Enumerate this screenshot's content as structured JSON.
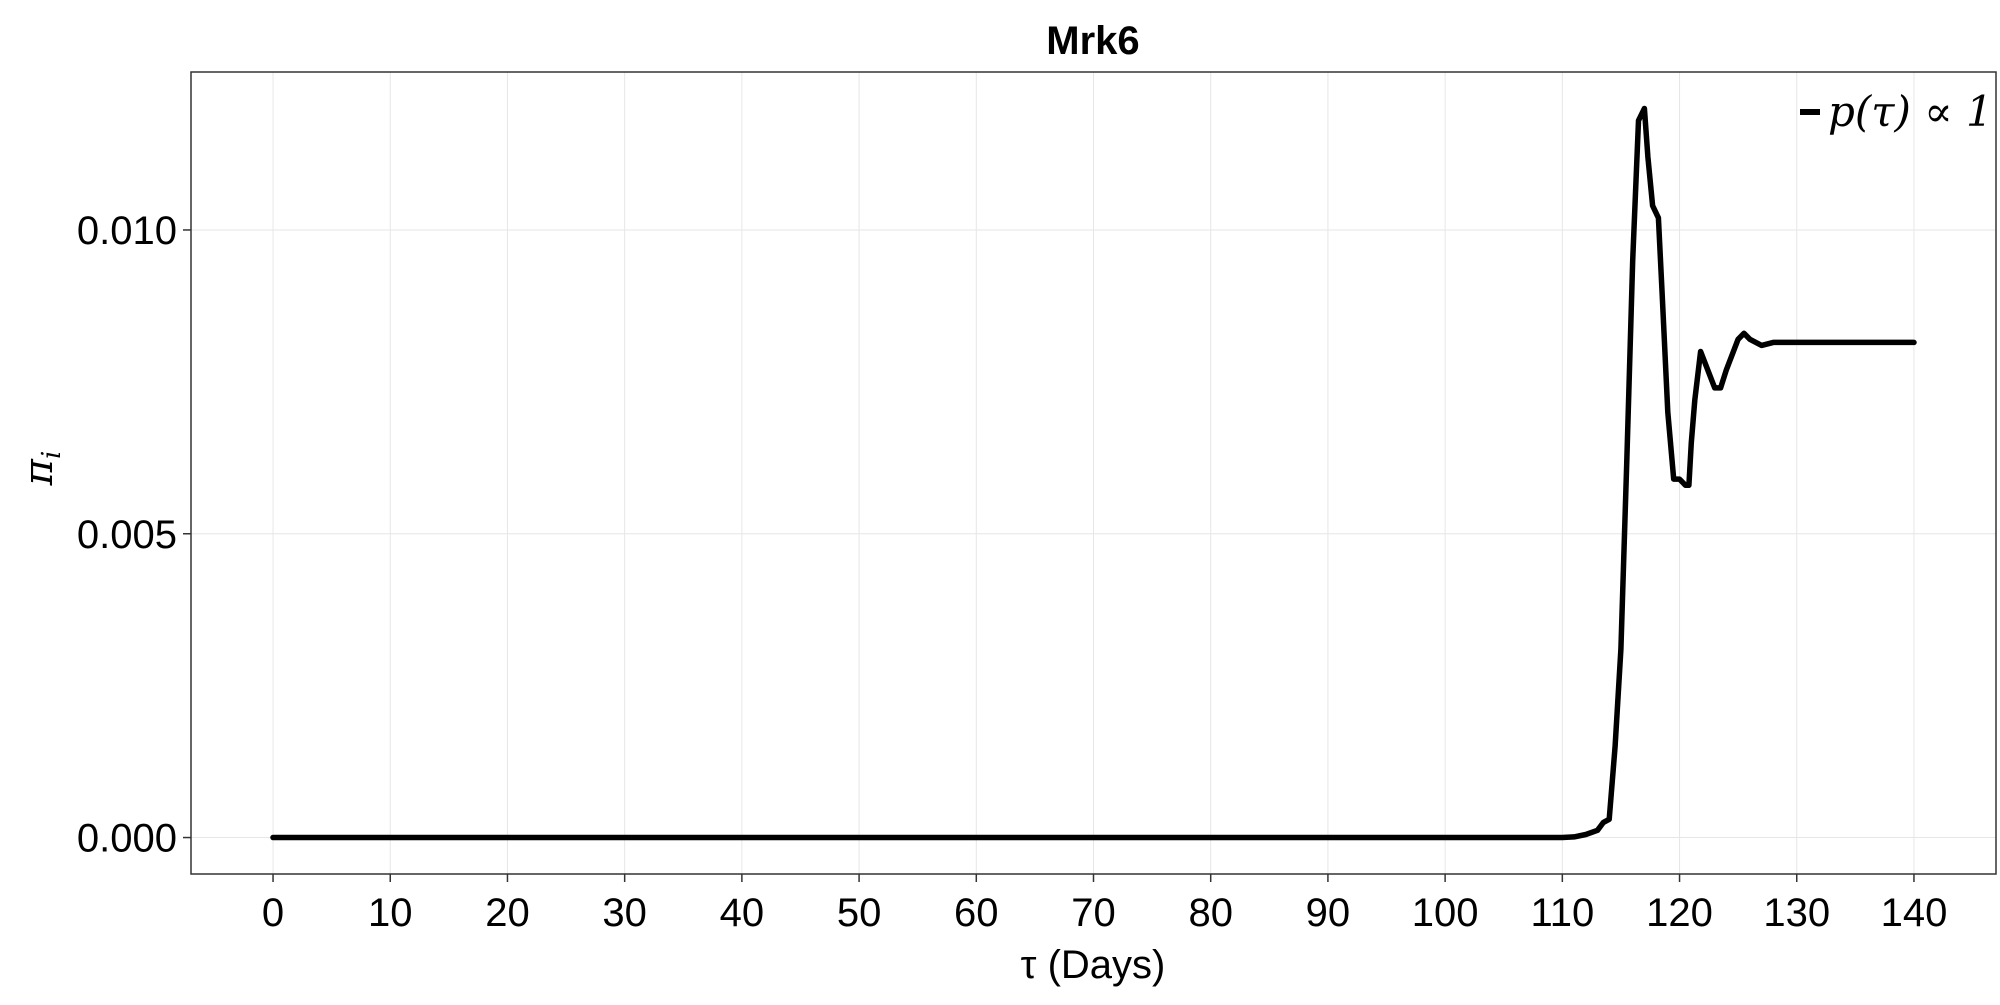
{
  "chart_data": {
    "type": "line",
    "title": "Mrk6",
    "xlabel": "τ (Days)",
    "ylabel": "π_i",
    "xlim": [
      -7,
      147
    ],
    "ylim": [
      -0.0006,
      0.0126
    ],
    "xticks": [
      0,
      10,
      20,
      30,
      40,
      50,
      60,
      70,
      80,
      90,
      100,
      110,
      120,
      130,
      140
    ],
    "xtick_labels": [
      "0",
      "10",
      "20",
      "30",
      "40",
      "50",
      "60",
      "70",
      "80",
      "90",
      "100",
      "110",
      "120",
      "130",
      "140"
    ],
    "yticks": [
      0.0,
      0.005,
      0.01
    ],
    "ytick_labels": [
      "0.000",
      "0.005",
      "0.010"
    ],
    "grid": true,
    "legend_position": "top-right",
    "colors": {
      "series": "#000000",
      "grid": "#e6e6e6",
      "frame": "#333333"
    },
    "series": [
      {
        "name": "p(τ) ∝ 1",
        "x": [
          0,
          10,
          20,
          30,
          40,
          50,
          60,
          70,
          80,
          90,
          100,
          110,
          111,
          112,
          113,
          113.5,
          114,
          114.5,
          115,
          115.5,
          116,
          116.5,
          117,
          117.3,
          117.7,
          118.2,
          118.5,
          119,
          119.5,
          120,
          120.5,
          120.8,
          121,
          121.3,
          121.8,
          122.2,
          123,
          123.5,
          124,
          125,
          125.5,
          126,
          127,
          128,
          130,
          135,
          140
        ],
        "values": [
          0,
          0,
          0,
          0,
          0,
          0,
          0,
          0,
          0,
          0,
          0,
          0,
          1e-05,
          5e-05,
          0.00012,
          0.00025,
          0.0003,
          0.0015,
          0.0031,
          0.0062,
          0.0095,
          0.0118,
          0.012,
          0.0112,
          0.0104,
          0.0102,
          0.009,
          0.007,
          0.0059,
          0.0059,
          0.0058,
          0.0058,
          0.0065,
          0.0072,
          0.008,
          0.0078,
          0.0074,
          0.0074,
          0.0077,
          0.0082,
          0.0083,
          0.0082,
          0.0081,
          0.00815,
          0.00815,
          0.00815,
          0.00815
        ]
      }
    ]
  }
}
